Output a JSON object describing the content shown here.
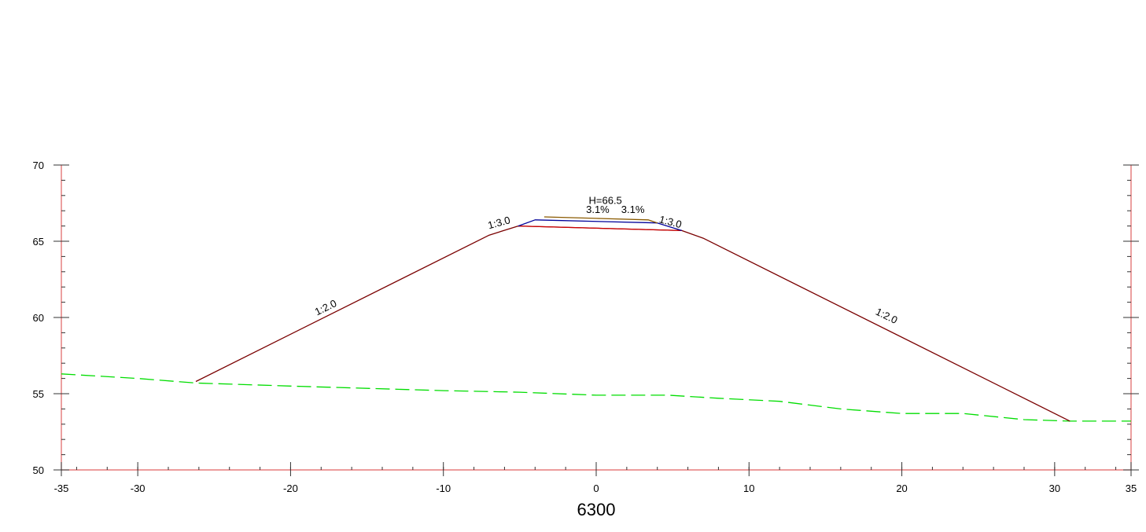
{
  "chart_data": {
    "type": "line",
    "title": "",
    "station": "6300",
    "xlim": [
      -35,
      35
    ],
    "ylim": [
      50,
      70
    ],
    "x_ticks_major": [
      -35,
      -30,
      -20,
      -10,
      0,
      10,
      20,
      30,
      35
    ],
    "x_tick_labels": [
      "-35",
      "-30",
      "-20",
      "-10",
      "0",
      "10",
      "20",
      "30",
      "35"
    ],
    "y_ticks_major": [
      50,
      55,
      60,
      65,
      70
    ],
    "y_tick_labels": [
      "50",
      "55",
      "60",
      "65",
      "70"
    ],
    "series": [
      {
        "key": "ground",
        "style": "dashed",
        "color": "#00dd00",
        "points": [
          [
            -35,
            56.3
          ],
          [
            -30,
            56.0
          ],
          [
            -26.2,
            55.7
          ],
          [
            -20,
            55.5
          ],
          [
            -10,
            55.2
          ],
          [
            -5,
            55.1
          ],
          [
            0,
            54.9
          ],
          [
            3,
            54.9
          ],
          [
            4.7,
            54.9
          ],
          [
            8,
            54.7
          ],
          [
            12,
            54.5
          ],
          [
            16,
            54.0
          ],
          [
            20,
            53.7
          ],
          [
            24,
            53.7
          ],
          [
            28,
            53.3
          ],
          [
            31,
            53.2
          ],
          [
            35,
            53.2
          ]
        ]
      },
      {
        "key": "embankment-outline",
        "style": "solid",
        "color": "#7a0000",
        "points": [
          [
            -26.2,
            55.8
          ],
          [
            -7.0,
            65.4
          ],
          [
            -5.1,
            66.0
          ],
          [
            5.6,
            65.7
          ],
          [
            7.0,
            65.2
          ],
          [
            31.0,
            53.2
          ]
        ]
      },
      {
        "key": "subgrade-top",
        "style": "solid",
        "color": "#cc0000",
        "points": [
          [
            -5.1,
            66.0
          ],
          [
            5.6,
            65.7
          ]
        ]
      },
      {
        "key": "pavement-layer",
        "style": "solid",
        "color": "#000099",
        "points": [
          [
            -5.1,
            66.0
          ],
          [
            -4.0,
            66.4
          ],
          [
            4.0,
            66.2
          ],
          [
            5.6,
            65.7
          ]
        ]
      },
      {
        "key": "road-surface",
        "style": "solid",
        "color": "#8a5a00",
        "points": [
          [
            -3.4,
            66.6
          ],
          [
            0,
            66.5
          ],
          [
            3.4,
            66.4
          ],
          [
            4.0,
            66.2
          ]
        ]
      }
    ],
    "annotations": [
      {
        "key": "design-elevation",
        "text": "H=66.5",
        "x": 0.6,
        "y": 67.45,
        "angle": 0
      },
      {
        "key": "crossfall-left",
        "text": "3.1%",
        "x": 0.1,
        "y": 66.85,
        "angle": 0
      },
      {
        "key": "crossfall-right",
        "text": "3.1%",
        "x": 2.4,
        "y": 66.85,
        "angle": 0
      },
      {
        "key": "slope-upper-left",
        "text": "1:3.0",
        "x": -6.3,
        "y": 66.0,
        "angle": -15
      },
      {
        "key": "slope-upper-right",
        "text": "1:3.0",
        "x": 4.8,
        "y": 66.05,
        "angle": 15
      },
      {
        "key": "slope-lower-left",
        "text": "1:2.0",
        "x": -17.6,
        "y": 60.45,
        "angle": -26
      },
      {
        "key": "slope-lower-right",
        "text": "1:2.0",
        "x": 18.9,
        "y": 59.9,
        "angle": 26
      }
    ]
  }
}
